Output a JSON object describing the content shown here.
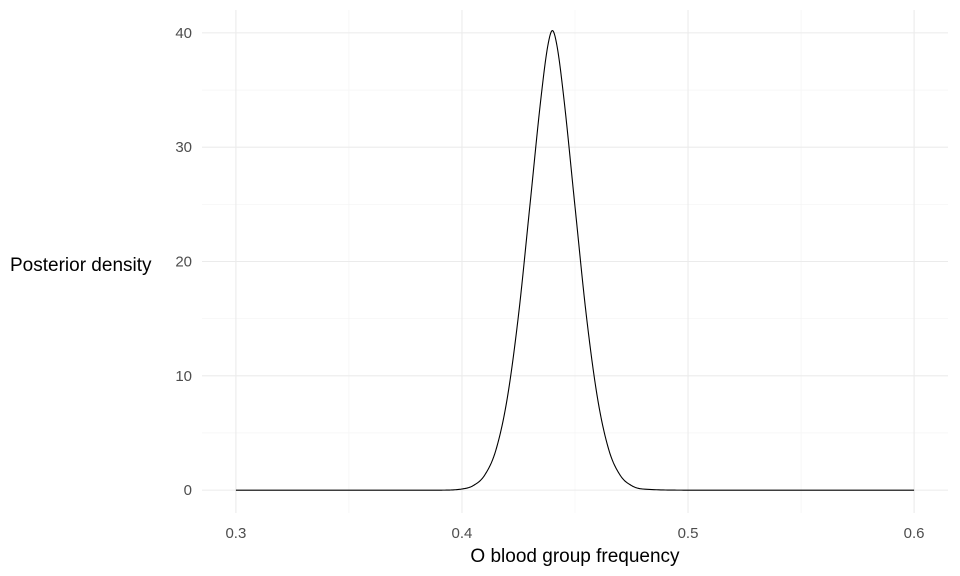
{
  "chart_data": {
    "type": "line",
    "title": "",
    "xlabel": "O blood group frequency",
    "ylabel": "Posterior density",
    "xlim": [
      0.285,
      0.615
    ],
    "ylim": [
      -2,
      42
    ],
    "x_ticks": [
      0.3,
      0.4,
      0.5,
      0.6
    ],
    "x_tick_labels": [
      "0.3",
      "0.4",
      "0.5",
      "0.6"
    ],
    "y_ticks": [
      0,
      10,
      20,
      30,
      40
    ],
    "y_tick_labels": [
      "0",
      "10",
      "20",
      "30",
      "40"
    ],
    "grid": true,
    "legend": "none",
    "line_color": "#000000",
    "series": [
      {
        "x": [
          0.3,
          0.35,
          0.39,
          0.4,
          0.405,
          0.41,
          0.415,
          0.42,
          0.425,
          0.43,
          0.435,
          0.438,
          0.44,
          0.442,
          0.445,
          0.45,
          0.455,
          0.46,
          0.465,
          0.47,
          0.475,
          0.48,
          0.5,
          0.55,
          0.6
        ],
        "y": [
          0,
          0,
          0,
          0.1,
          0.4,
          1.3,
          3.5,
          8.0,
          15.3,
          24.8,
          34.4,
          38.9,
          40.2,
          38.9,
          34.4,
          24.8,
          15.3,
          8.0,
          3.5,
          1.3,
          0.4,
          0.1,
          0,
          0,
          0
        ]
      }
    ]
  }
}
